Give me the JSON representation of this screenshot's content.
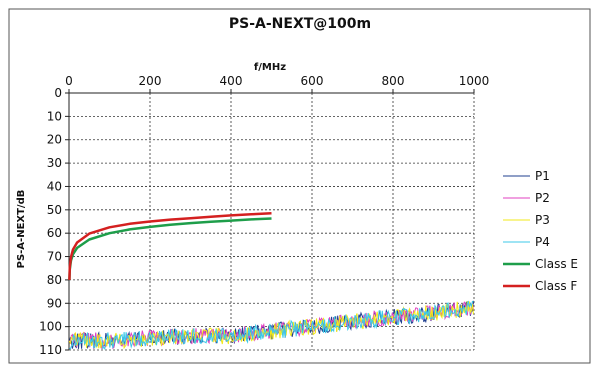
{
  "chart_data": {
    "type": "line",
    "title": "PS-A-NEXT@100m",
    "xlabel": "f/MHz",
    "ylabel": "PS-A-NEXT/dB",
    "xlim": [
      0,
      1000
    ],
    "ylim": [
      0,
      110
    ],
    "y_inverted": true,
    "x_axis_position": "top",
    "x_ticks": [
      "0",
      "200",
      "400",
      "600",
      "800",
      "1000"
    ],
    "y_ticks": [
      "0",
      "10",
      "20",
      "30",
      "40",
      "50",
      "60",
      "70",
      "80",
      "90",
      "100",
      "110"
    ],
    "grid": "dotted",
    "legend_position": "right",
    "series": [
      {
        "name": "P1",
        "color": "#1f3f8f",
        "style": "noisy",
        "x": [
          0,
          100,
          200,
          300,
          400,
          500,
          600,
          700,
          800,
          900,
          1000
        ],
        "y": [
          106,
          106,
          105,
          104,
          104,
          102,
          100,
          98,
          96,
          94,
          92
        ]
      },
      {
        "name": "P2",
        "color": "#e040c0",
        "style": "noisy",
        "x": [
          0,
          100,
          200,
          300,
          400,
          500,
          600,
          700,
          800,
          900,
          1000
        ],
        "y": [
          106,
          106,
          105,
          104,
          104,
          102,
          100,
          98,
          96,
          94,
          92
        ]
      },
      {
        "name": "P3",
        "color": "#f2ea1a",
        "style": "noisy",
        "x": [
          0,
          100,
          200,
          300,
          400,
          500,
          600,
          700,
          800,
          900,
          1000
        ],
        "y": [
          106,
          106,
          105,
          104,
          104,
          102,
          100,
          98,
          96,
          94,
          92
        ]
      },
      {
        "name": "P4",
        "color": "#3cc8e8",
        "style": "noisy",
        "x": [
          0,
          100,
          200,
          300,
          400,
          500,
          600,
          700,
          800,
          900,
          1000
        ],
        "y": [
          106,
          106,
          105,
          104,
          104,
          102,
          100,
          98,
          96,
          94,
          92
        ]
      },
      {
        "name": "Class E",
        "color": "#1e9e4a",
        "style": "smooth",
        "x": [
          1,
          2,
          5,
          10,
          20,
          50,
          100,
          150,
          200,
          250,
          300,
          350,
          400,
          450,
          500
        ],
        "y": [
          80,
          75.5,
          71.7,
          69,
          66.3,
          62.7,
          60,
          58.4,
          57.3,
          56.4,
          55.7,
          55.1,
          54.6,
          54.1,
          53.7
        ]
      },
      {
        "name": "Class F",
        "color": "#d42020",
        "style": "smooth",
        "x": [
          1,
          2,
          5,
          10,
          20,
          50,
          100,
          150,
          200,
          250,
          300,
          350,
          400,
          450,
          500
        ],
        "y": [
          80,
          74.5,
          70.2,
          67,
          64,
          60.2,
          57.5,
          56,
          55,
          54.2,
          53.6,
          53,
          52.4,
          51.9,
          51.5
        ]
      }
    ]
  }
}
